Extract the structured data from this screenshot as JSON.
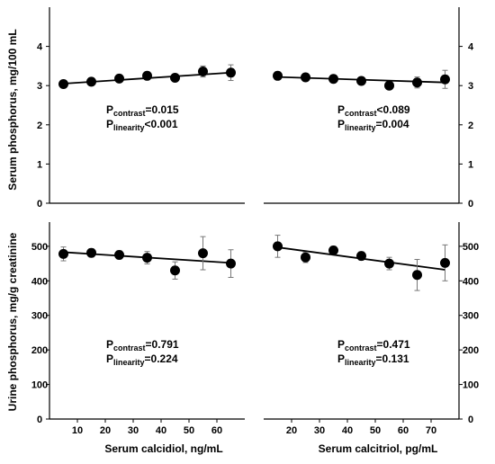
{
  "ylabel_top": "Serum phosphorus, mg/100 mL",
  "ylabel_bottom": "Urine phosphorus, mg/g creatinine",
  "xlabel_left": "Serum calcidiol, ng/mL",
  "xlabel_right": "Serum calcitriol, pg/mL",
  "chart_data": [
    {
      "panel": "top-left",
      "type": "scatter",
      "x": [
        5,
        15,
        25,
        35,
        45,
        55,
        65
      ],
      "y": [
        3.04,
        3.1,
        3.18,
        3.25,
        3.2,
        3.36,
        3.33
      ],
      "err": [
        0.05,
        0.05,
        0.06,
        0.07,
        0.07,
        0.14,
        0.2
      ],
      "trend": [
        [
          5,
          3.05
        ],
        [
          65,
          3.33
        ]
      ],
      "xlim": [
        0,
        70
      ],
      "ylim": [
        0,
        5
      ],
      "yticks": [
        "0",
        "1",
        "2",
        "3",
        "4"
      ],
      "xticks": [],
      "ytick_side": "left",
      "stats": [
        {
          "p": "P",
          "sub": "contrast",
          "val": "=0.015"
        },
        {
          "p": "P",
          "sub": "linearity",
          "val": "<0.001"
        }
      ]
    },
    {
      "panel": "top-right",
      "type": "scatter",
      "x": [
        15,
        25,
        35,
        45,
        55,
        65,
        75
      ],
      "y": [
        3.25,
        3.21,
        3.17,
        3.12,
        3.0,
        3.08,
        3.16
      ],
      "err": [
        0.1,
        0.07,
        0.06,
        0.06,
        0.08,
        0.14,
        0.23
      ],
      "trend": [
        [
          15,
          3.22
        ],
        [
          75,
          3.08
        ]
      ],
      "xlim": [
        10,
        80
      ],
      "ylim": [
        0,
        5
      ],
      "yticks": [
        "0",
        "1",
        "2",
        "3",
        "4"
      ],
      "xticks": [],
      "ytick_side": "right",
      "stats": [
        {
          "p": "P",
          "sub": "contrast",
          "val": "<0.089"
        },
        {
          "p": "P",
          "sub": "linearity",
          "val": "=0.004"
        }
      ]
    },
    {
      "panel": "bottom-left",
      "type": "scatter",
      "x": [
        5,
        15,
        25,
        35,
        45,
        55,
        65
      ],
      "y": [
        478,
        481,
        475,
        467,
        430,
        480,
        450
      ],
      "err": [
        20,
        12,
        12,
        18,
        25,
        48,
        40
      ],
      "trend": [
        [
          5,
          483
        ],
        [
          65,
          452
        ]
      ],
      "xlim": [
        0,
        70
      ],
      "ylim": [
        0,
        570
      ],
      "yticks": [
        "0",
        "100",
        "200",
        "300",
        "400",
        "500"
      ],
      "xticks": [
        "10",
        "20",
        "30",
        "40",
        "50",
        "60"
      ],
      "ytick_side": "left",
      "stats": [
        {
          "p": "P",
          "sub": "contrast",
          "val": "=0.791"
        },
        {
          "p": "P",
          "sub": "linearity",
          "val": "=0.224"
        }
      ]
    },
    {
      "panel": "bottom-right",
      "type": "scatter",
      "x": [
        15,
        25,
        35,
        45,
        55,
        65,
        75
      ],
      "y": [
        500,
        468,
        488,
        472,
        450,
        417,
        452
      ],
      "err": [
        32,
        15,
        12,
        12,
        18,
        45,
        52
      ],
      "trend": [
        [
          15,
          497
        ],
        [
          75,
          432
        ]
      ],
      "xlim": [
        10,
        80
      ],
      "ylim": [
        0,
        570
      ],
      "yticks": [
        "0",
        "100",
        "200",
        "300",
        "400",
        "500"
      ],
      "xticks": [
        "20",
        "30",
        "40",
        "50",
        "60",
        "70"
      ],
      "ytick_side": "right",
      "stats": [
        {
          "p": "P",
          "sub": "contrast",
          "val": "=0.471"
        },
        {
          "p": "P",
          "sub": "linearity",
          "val": "=0.131"
        }
      ]
    }
  ]
}
